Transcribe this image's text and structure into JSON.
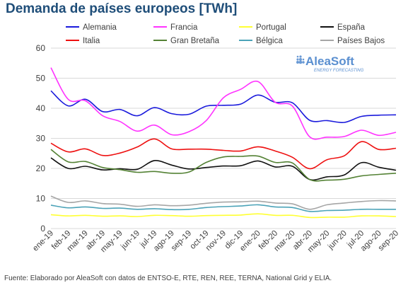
{
  "page": {
    "footer": "Fuente: Elaborado por AleaSoft con datos de ENTSO-E, RTE, REN, REE, TERNA, National Grid y ELIA."
  },
  "logo": {
    "name": "AleaSoft",
    "tagline": "ENERGY FORECASTING",
    "color": "#5a8fd0"
  },
  "chart_data": {
    "type": "line",
    "title": "Demanda de países europeos [TWh]",
    "xlabel": "",
    "ylabel": "",
    "ylim": [
      0,
      60
    ],
    "yticks": [
      0,
      10,
      20,
      30,
      40,
      50,
      60
    ],
    "grid": true,
    "legend_position": "top",
    "categories": [
      "ene-19",
      "feb-19",
      "mar-19",
      "abr-19",
      "may-19",
      "jun-19",
      "jul-19",
      "ago-19",
      "sep-19",
      "oct-19",
      "nov-19",
      "dic-19",
      "ene-20",
      "feb-20",
      "mar-20",
      "abr-20",
      "may-20",
      "jun-20",
      "jul-20",
      "ago-20",
      "sep-20"
    ],
    "series": [
      {
        "name": "Alemania",
        "color": "#1a1adc",
        "values": [
          45.8,
          40.8,
          43.0,
          38.9,
          39.6,
          37.5,
          40.2,
          38.2,
          38.0,
          40.7,
          41.0,
          41.4,
          44.4,
          42.0,
          41.8,
          36.0,
          35.9,
          35.3,
          37.3,
          37.7,
          37.8
        ]
      },
      {
        "name": "Francia",
        "color": "#ff33ff",
        "values": [
          53.5,
          43.0,
          42.5,
          37.5,
          35.6,
          32.4,
          34.4,
          31.2,
          32.2,
          35.9,
          43.5,
          46.3,
          48.9,
          42.0,
          40.7,
          30.5,
          30.4,
          30.6,
          32.7,
          31.0,
          32.0
        ]
      },
      {
        "name": "Portugal",
        "color": "#ffff33",
        "values": [
          4.6,
          4.2,
          4.4,
          4.1,
          4.2,
          4.0,
          4.4,
          4.3,
          4.1,
          4.3,
          4.4,
          4.5,
          4.9,
          4.4,
          4.4,
          3.7,
          3.8,
          3.8,
          4.2,
          4.2,
          4.0
        ]
      },
      {
        "name": "España",
        "color": "#111111",
        "values": [
          23.5,
          20.0,
          20.7,
          19.5,
          19.9,
          19.7,
          22.6,
          21.1,
          19.8,
          20.3,
          20.8,
          20.9,
          22.5,
          20.5,
          20.7,
          16.3,
          17.2,
          17.8,
          21.9,
          20.4,
          19.4
        ]
      },
      {
        "name": "Italia",
        "color": "#ee1111",
        "values": [
          28.4,
          25.5,
          26.5,
          24.3,
          25.1,
          27.1,
          29.8,
          26.5,
          26.4,
          26.4,
          26.0,
          25.8,
          27.2,
          25.8,
          23.7,
          19.9,
          22.9,
          24.2,
          28.9,
          26.3,
          26.7
        ]
      },
      {
        "name": "Gran Bretaña",
        "color": "#548235",
        "values": [
          26.3,
          22.2,
          22.3,
          20.3,
          19.6,
          18.7,
          19.0,
          18.4,
          18.8,
          22.0,
          23.8,
          24.0,
          24.1,
          22.0,
          21.8,
          16.3,
          16.1,
          16.4,
          17.5,
          18.0,
          18.4
        ]
      },
      {
        "name": "Bélgica",
        "color": "#4ba3b8",
        "values": [
          7.8,
          6.9,
          7.2,
          6.7,
          6.8,
          6.4,
          6.6,
          6.3,
          6.4,
          7.0,
          7.3,
          7.5,
          7.9,
          7.2,
          7.0,
          5.7,
          6.0,
          6.1,
          6.4,
          6.4,
          6.4
        ]
      },
      {
        "name": "Países Bajos",
        "color": "#a6a6a6",
        "values": [
          10.8,
          8.7,
          9.2,
          8.3,
          8.1,
          7.4,
          7.9,
          7.6,
          7.8,
          8.4,
          8.8,
          8.9,
          9.1,
          8.5,
          8.2,
          6.4,
          7.9,
          8.5,
          9.0,
          9.3,
          9.2
        ]
      }
    ]
  }
}
